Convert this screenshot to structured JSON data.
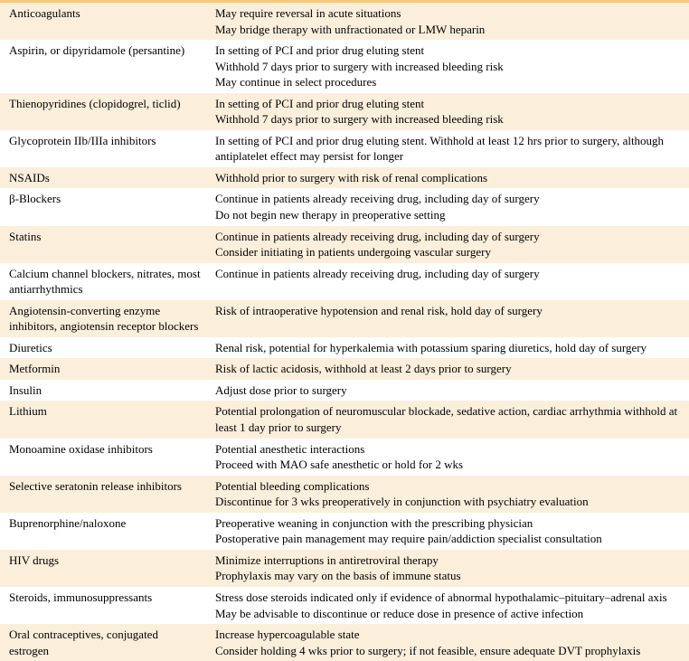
{
  "rows": [
    {
      "drug": "Anticoagulants",
      "notes": [
        "May require reversal in acute situations",
        "May bridge therapy with unfractionated or LMW heparin"
      ]
    },
    {
      "drug": "Aspirin, or dipyridamole (persantine)",
      "notes": [
        "In setting of PCI and prior drug eluting stent",
        "Withhold 7 days prior to surgery with increased bleeding risk",
        "May continue in select procedures"
      ]
    },
    {
      "drug": "Thienopyridines (clopidogrel, ticlid)",
      "notes": [
        "In setting of PCI and prior drug eluting stent",
        "Withhold 7 days prior to surgery with increased bleeding risk"
      ]
    },
    {
      "drug": "Glycoprotein IIb/IIIa inhibitors",
      "notes": [
        "In setting of PCI and prior drug eluting stent. Withhold at least 12 hrs prior to surgery, although antiplatelet effect may persist for longer"
      ]
    },
    {
      "drug": "NSAIDs",
      "notes": [
        "Withhold prior to surgery with risk of renal complications"
      ]
    },
    {
      "drug": "β-Blockers",
      "notes": [
        "Continue in patients already receiving drug, including day of surgery",
        "Do not begin new therapy in preoperative setting"
      ]
    },
    {
      "drug": "Statins",
      "notes": [
        "Continue in patients already receiving drug, including day of surgery",
        "Consider initiating in patients undergoing vascular surgery"
      ]
    },
    {
      "drug": "Calcium channel blockers, nitrates, most antiarrhythmics",
      "notes": [
        "Continue in patients already receiving drug, including day of surgery"
      ]
    },
    {
      "drug": "Angiotensin-converting enzyme inhibitors, angiotensin receptor blockers",
      "notes": [
        "Risk of intraoperative hypotension and renal risk, hold day of surgery"
      ]
    },
    {
      "drug": "Diuretics",
      "notes": [
        "Renal risk, potential for hyperkalemia with potassium sparing diuretics, hold day of surgery"
      ]
    },
    {
      "drug": "Metformin",
      "notes": [
        "Risk of lactic acidosis, withhold at least 2 days prior to surgery"
      ]
    },
    {
      "drug": "Insulin",
      "notes": [
        "Adjust dose prior to surgery"
      ]
    },
    {
      "drug": "Lithium",
      "notes": [
        "Potential prolongation of neuromuscular blockade, sedative action, cardiac arrhythmia withhold at least 1 day prior to surgery"
      ]
    },
    {
      "drug": "Monoamine oxidase inhibitors",
      "notes": [
        "Potential anesthetic interactions",
        "Proceed with MAO safe anesthetic or hold for 2 wks"
      ]
    },
    {
      "drug": "Selective seratonin release inhibitors",
      "notes": [
        "Potential bleeding complications",
        "Discontinue for 3 wks preoperatively in conjunction with psychiatry evaluation"
      ]
    },
    {
      "drug": "Buprenorphine/naloxone",
      "notes": [
        "Preoperative weaning in conjunction with the prescribing physician",
        "Postoperative pain management may require pain/addiction specialist consultation"
      ]
    },
    {
      "drug": "HIV drugs",
      "notes": [
        "Minimize interruptions in antiretroviral therapy",
        "Prophylaxis may vary on the basis of immune status"
      ]
    },
    {
      "drug": "Steroids, immunosuppressants",
      "notes": [
        "Stress dose steroids indicated only if evidence of abnormal hypothalamic–pituitary–adrenal axis",
        "May be advisable to discontinue or reduce dose in presence of active infection"
      ]
    },
    {
      "drug": "Oral contraceptives, conjugated estrogen",
      "notes": [
        "Increase hypercoagulable state",
        "Consider holding 4 wks prior to surgery; if not feasible, ensure adequate DVT prophylaxis"
      ]
    }
  ],
  "colors": {
    "header": "#f8c778",
    "odd": "#fbefdc",
    "even": "#ffffff"
  }
}
